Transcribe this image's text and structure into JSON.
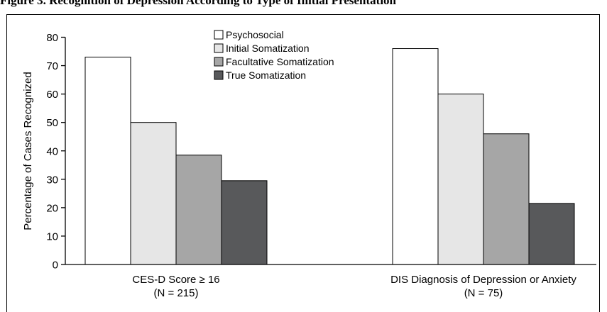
{
  "figure": {
    "caption": "Figure 3. Recognition of Depression According to Type of Initial Presentation"
  },
  "colors": {
    "Psychosocial": "#ffffff",
    "Initial Somatization": "#e6e6e6",
    "Facultative Somatization": "#a6a6a6",
    "True Somatization": "#58595b"
  },
  "chart_data": {
    "type": "bar",
    "title": "",
    "xlabel": "",
    "ylabel": "Percentage of Cases Recognized",
    "ylim": [
      0,
      80
    ],
    "yticks": [
      0,
      10,
      20,
      30,
      40,
      50,
      60,
      70,
      80
    ],
    "grid": false,
    "legend_position": "top-center",
    "categories": [
      {
        "line1": "CES-D Score ≥ 16",
        "line2": "(N = 215)"
      },
      {
        "line1": "DIS Diagnosis of Depression or Anxiety",
        "line2": "(N = 75)"
      }
    ],
    "series": [
      {
        "name": "Psychosocial",
        "values": [
          73,
          76
        ]
      },
      {
        "name": "Initial Somatization",
        "values": [
          50,
          60
        ]
      },
      {
        "name": "Facultative Somatization",
        "values": [
          38.5,
          46
        ]
      },
      {
        "name": "True Somatization",
        "values": [
          29.5,
          21.5
        ]
      }
    ]
  }
}
